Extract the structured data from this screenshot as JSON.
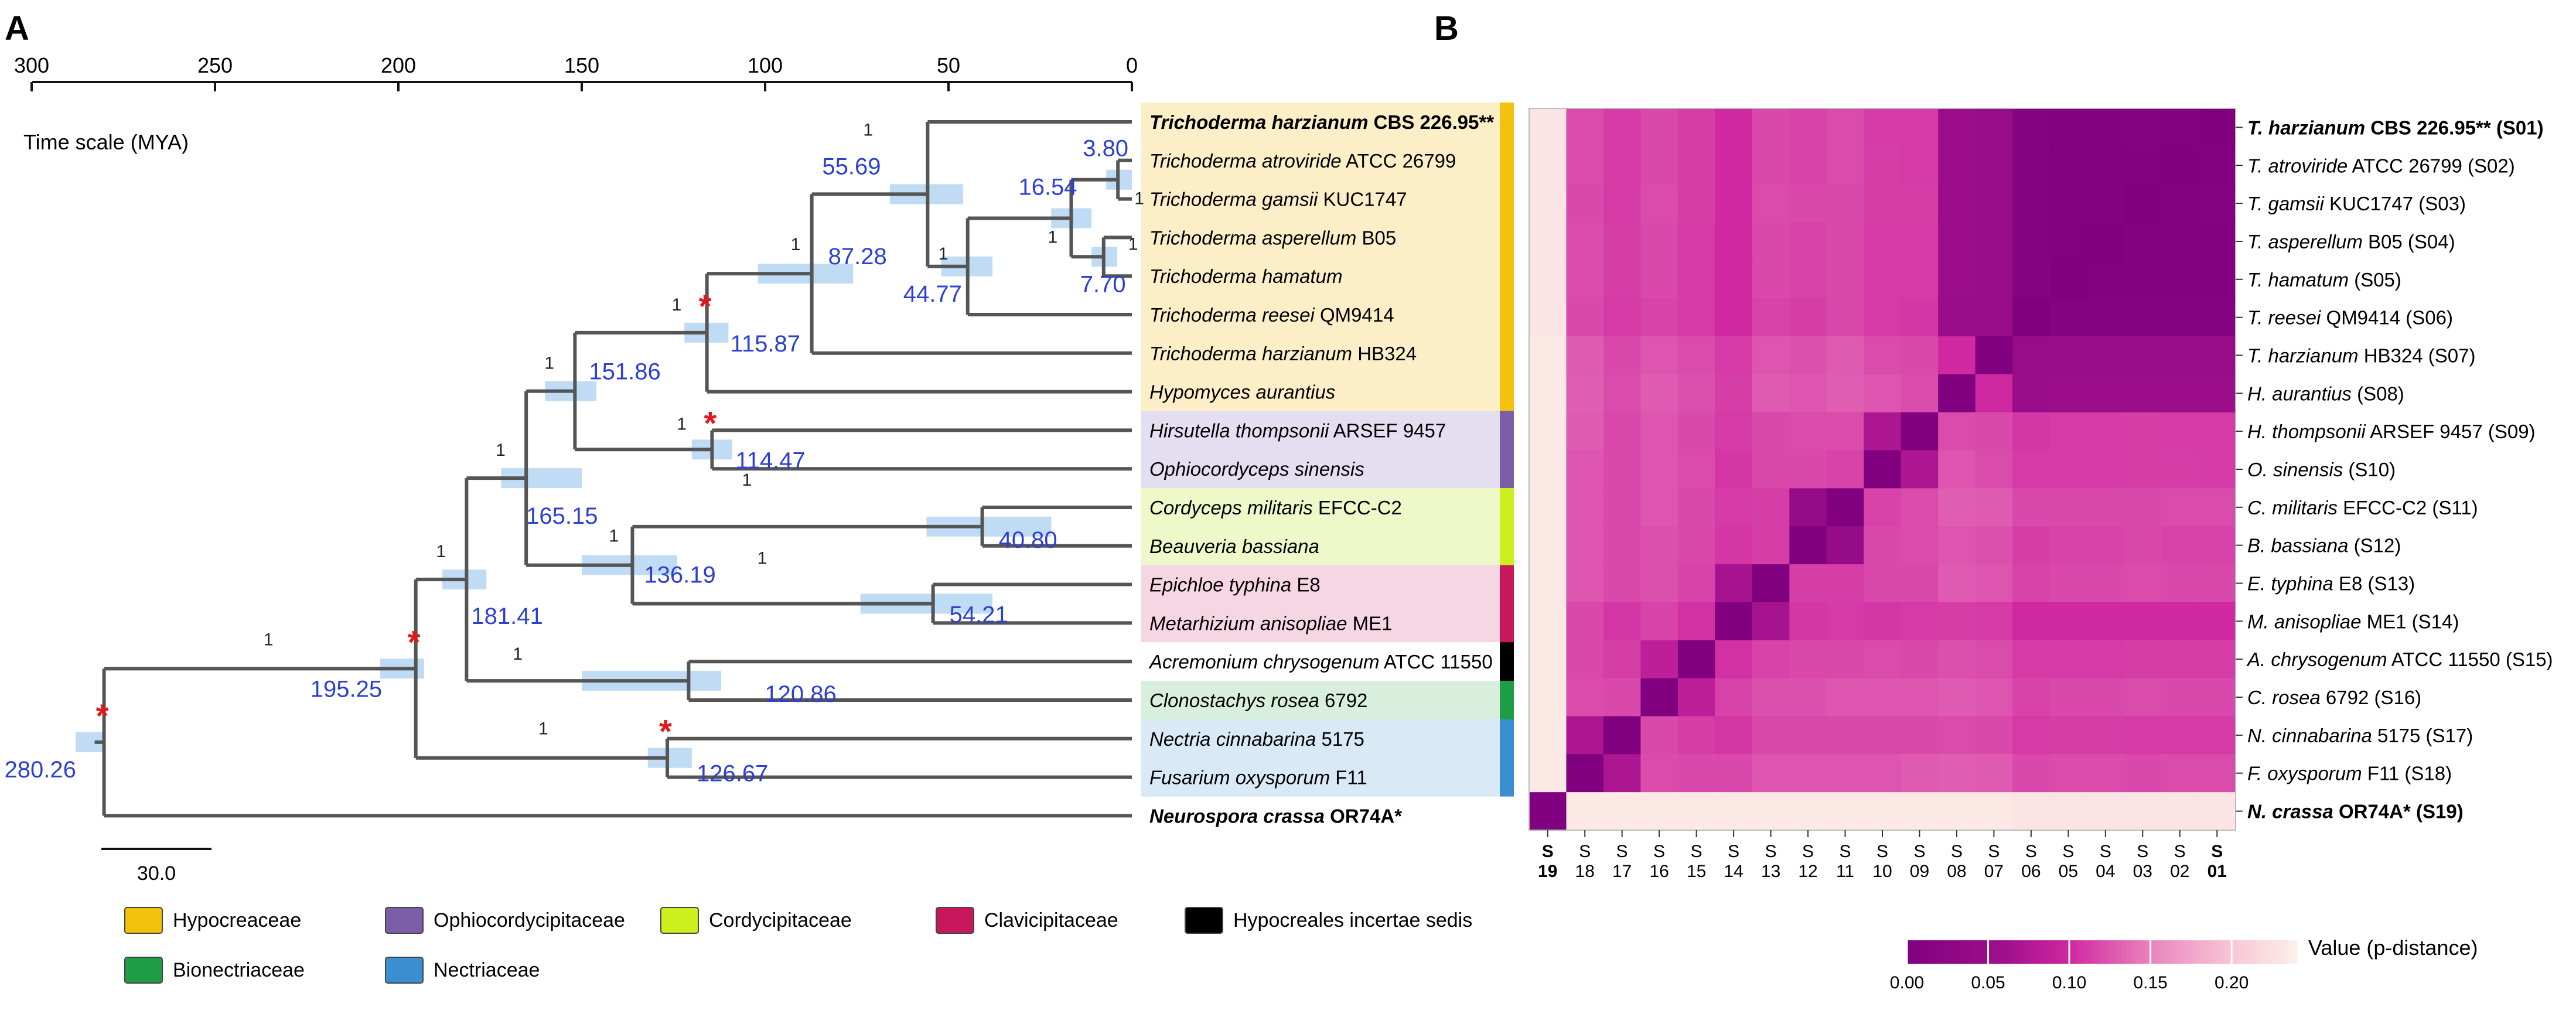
{
  "panels": {
    "a": "A",
    "b": "B"
  },
  "time_scale": {
    "label": "Time scale (MYA)",
    "ticks": [
      300,
      250,
      200,
      150,
      100,
      50,
      0
    ],
    "scale_bar": "30.0"
  },
  "families": [
    {
      "name": "Hypocreaceae",
      "color": "#f4c20d",
      "bg": "#fcefc7"
    },
    {
      "name": "Ophiocordycipitaceae",
      "color": "#7b5ea7",
      "bg": "#e3def0"
    },
    {
      "name": "Cordycipitaceae",
      "color": "#ccf01e",
      "bg": "#eef8c8"
    },
    {
      "name": "Clavicipitaceae",
      "color": "#c8185c",
      "bg": "#f7d6e4"
    },
    {
      "name": "Hypocreales incertae sedis",
      "color": "#000000",
      "bg": "#ffffff"
    },
    {
      "name": "Bionectriaceae",
      "color": "#1f9d45",
      "bg": "#d7efdc"
    },
    {
      "name": "Nectriaceae",
      "color": "#3b8fd0",
      "bg": "#d9e9f6"
    }
  ],
  "taxa": [
    {
      "genus": "Trichoderma harzianum",
      "rest": " CBS 226.95**",
      "bold": true,
      "family": 0
    },
    {
      "genus": "Trichoderma atroviride",
      "rest": " ATCC 26799",
      "bold": false,
      "family": 0
    },
    {
      "genus": "Trichoderma gamsii",
      "rest": " KUC1747",
      "bold": false,
      "family": 0
    },
    {
      "genus": "Trichoderma asperellum",
      "rest": " B05",
      "bold": false,
      "family": 0
    },
    {
      "genus": "Trichoderma hamatum",
      "rest": "",
      "bold": false,
      "family": 0
    },
    {
      "genus": "Trichoderma reesei",
      "rest": " QM9414",
      "bold": false,
      "family": 0
    },
    {
      "genus": "Trichoderma harzianum",
      "rest": " HB324",
      "bold": false,
      "family": 0
    },
    {
      "genus": "Hypomyces aurantius",
      "rest": "",
      "bold": false,
      "family": 0
    },
    {
      "genus": "Hirsutella thompsonii",
      "rest": " ARSEF 9457",
      "bold": false,
      "family": 1
    },
    {
      "genus": "Ophiocordyceps sinensis",
      "rest": "",
      "bold": false,
      "family": 1
    },
    {
      "genus": "Cordyceps militaris",
      "rest": " EFCC-C2",
      "bold": false,
      "family": 2
    },
    {
      "genus": "Beauveria bassiana",
      "rest": "",
      "bold": false,
      "family": 2
    },
    {
      "genus": "Epichloe typhina",
      "rest": " E8",
      "bold": false,
      "family": 3
    },
    {
      "genus": "Metarhizium anisopliae",
      "rest": " ME1",
      "bold": false,
      "family": 3
    },
    {
      "genus": "Acremonium chrysogenum",
      "rest": " ATCC 11550",
      "bold": false,
      "family": 4
    },
    {
      "genus": "Clonostachys rosea",
      "rest": " 6792",
      "bold": false,
      "family": 5
    },
    {
      "genus": "Nectria cinnabarina",
      "rest": " 5175",
      "bold": false,
      "family": 6
    },
    {
      "genus": "Fusarium oxysporum",
      "rest": " F11",
      "bold": false,
      "family": 6
    },
    {
      "genus": "Neurospora crassa",
      "rest": " OR74A*",
      "bold": true,
      "family": -1
    }
  ],
  "nodes": [
    {
      "id": "n_ae",
      "age": 3.8,
      "label": "3.80",
      "support": "1",
      "ci": [
        0,
        7
      ]
    },
    {
      "id": "n_dee",
      "age": 7.7,
      "label": "7.70",
      "support": "1",
      "ci": [
        4,
        11
      ]
    },
    {
      "id": "n_ae_de",
      "age": 16.54,
      "label": "16.54",
      "support": "1",
      "ci": [
        11,
        22
      ]
    },
    {
      "id": "n_rt",
      "age": 44.77,
      "label": "44.77",
      "support": "1",
      "ci": [
        38,
        52
      ]
    },
    {
      "id": "n_tc",
      "age": 55.69,
      "label": "55.69",
      "support": "1",
      "ci": [
        46,
        66
      ]
    },
    {
      "id": "n_tri",
      "age": 87.28,
      "label": "87.28",
      "support": "1",
      "ci": [
        76,
        102
      ]
    },
    {
      "id": "n_hyp",
      "age": 115.87,
      "label": "115.87",
      "support": "1",
      "ci": [
        110,
        122
      ],
      "calibrated": true
    },
    {
      "id": "n_oph",
      "age": 114.47,
      "label": "114.47",
      "support": "1",
      "ci": [
        109,
        120
      ],
      "calibrated": true
    },
    {
      "id": "n_hypoph",
      "age": 151.86,
      "label": "151.86",
      "support": "1",
      "ci": [
        146,
        160
      ]
    },
    {
      "id": "n_cord",
      "age": 40.8,
      "label": "40.80",
      "support": "1",
      "ci": [
        22,
        56
      ]
    },
    {
      "id": "n_clav",
      "age": 54.21,
      "label": "54.21",
      "support": "1",
      "ci": [
        38,
        74
      ]
    },
    {
      "id": "n_cc",
      "age": 136.19,
      "label": "136.19",
      "support": "1",
      "ci": [
        124,
        150
      ]
    },
    {
      "id": "n_5fam",
      "age": 165.15,
      "label": "165.15",
      "support": "1",
      "ci": [
        150,
        172
      ]
    },
    {
      "id": "n_6fam",
      "age": 181.41,
      "label": "181.41",
      "support": "1",
      "ci": [
        176,
        188
      ]
    },
    {
      "id": "n_bio",
      "age": 120.86,
      "label": "120.86",
      "support": "1",
      "ci": [
        112,
        150
      ]
    },
    {
      "id": "n_nec",
      "age": 126.67,
      "label": "126.67",
      "support": "1",
      "ci": [
        120,
        132
      ],
      "calibrated": true
    },
    {
      "id": "n_hypoc",
      "age": 195.25,
      "label": "195.25",
      "support": "1",
      "ci": [
        193,
        205
      ],
      "calibrated": true
    },
    {
      "id": "n_root",
      "age": 280.26,
      "label": "280.26",
      "support": "1",
      "ci": [
        280,
        288
      ],
      "calibrated": true
    }
  ],
  "chart_data": {
    "type": "heatmap",
    "title": "Value (p-distance)",
    "colorbar_ticks": [
      "0.00",
      "0.05",
      "0.10",
      "0.15",
      "0.20"
    ],
    "range": [
      0,
      0.24
    ],
    "row_labels": [
      {
        "sp": "T. harzianum",
        "rest": " CBS 226.95** (S01)",
        "bold": true
      },
      {
        "sp": "T. atroviride",
        "rest": " ATCC 26799 (S02)",
        "bold": false
      },
      {
        "sp": "T. gamsii",
        "rest": " KUC1747 (S03)",
        "bold": false
      },
      {
        "sp": "T. asperellum",
        "rest": " B05 (S04)",
        "bold": false
      },
      {
        "sp": "T. hamatum",
        "rest": " (S05)",
        "bold": false
      },
      {
        "sp": "T. reesei",
        "rest": " QM9414 (S06)",
        "bold": false
      },
      {
        "sp": "T. harzianum",
        "rest": " HB324 (S07)",
        "bold": false
      },
      {
        "sp": "H. aurantius",
        "rest": " (S08)",
        "bold": false
      },
      {
        "sp": "H. thompsonii",
        "rest": " ARSEF 9457 (S09)",
        "bold": false
      },
      {
        "sp": "O. sinensis",
        "rest": " (S10)",
        "bold": false
      },
      {
        "sp": "C. militaris",
        "rest": " EFCC-C2 (S11)",
        "bold": false
      },
      {
        "sp": "B. bassiana",
        "rest": " (S12)",
        "bold": false
      },
      {
        "sp": "E. typhina",
        "rest": " E8 (S13)",
        "bold": false
      },
      {
        "sp": "M. anisopliae",
        "rest": " ME1 (S14)",
        "bold": false
      },
      {
        "sp": "A. chrysogenum",
        "rest": " ATCC 11550 (S15)",
        "bold": false
      },
      {
        "sp": "C. rosea",
        "rest": " 6792 (S16)",
        "bold": false
      },
      {
        "sp": "N. cinnabarina",
        "rest": " 5175 (S17)",
        "bold": false
      },
      {
        "sp": "F. oxysporum",
        "rest": " F11 (S18)",
        "bold": false
      },
      {
        "sp": "N. crassa",
        "rest": " OR74A* (S19)",
        "bold": true
      }
    ],
    "col_labels": [
      "19",
      "18",
      "17",
      "16",
      "15",
      "14",
      "13",
      "12",
      "11",
      "10",
      "09",
      "08",
      "07",
      "06",
      "05",
      "04",
      "03",
      "02",
      "01"
    ],
    "col_prefix": "S",
    "matrix": [
      [
        0,
        0.008,
        0.01,
        0.008,
        0.008,
        0.009,
        0.045,
        0.05,
        0.11,
        0.11,
        0.12,
        0.115,
        0.118,
        0.1,
        0.112,
        0.118,
        0.11,
        0.12,
        0.23
      ],
      [
        0.008,
        0,
        0.006,
        0.004,
        0.004,
        0.009,
        0.045,
        0.05,
        0.11,
        0.112,
        0.12,
        0.115,
        0.118,
        0.1,
        0.112,
        0.118,
        0.11,
        0.12,
        0.23
      ],
      [
        0.01,
        0.006,
        0,
        0.006,
        0.006,
        0.01,
        0.046,
        0.05,
        0.112,
        0.112,
        0.118,
        0.118,
        0.12,
        0.1,
        0.112,
        0.12,
        0.11,
        0.118,
        0.23
      ],
      [
        0.008,
        0.004,
        0.006,
        0,
        0.002,
        0.01,
        0.046,
        0.05,
        0.11,
        0.11,
        0.118,
        0.115,
        0.118,
        0.1,
        0.11,
        0.118,
        0.112,
        0.12,
        0.23
      ],
      [
        0.008,
        0.004,
        0.006,
        0.002,
        0,
        0.01,
        0.046,
        0.05,
        0.11,
        0.11,
        0.118,
        0.115,
        0.118,
        0.1,
        0.11,
        0.118,
        0.112,
        0.12,
        0.23
      ],
      [
        0.009,
        0.009,
        0.01,
        0.01,
        0.01,
        0,
        0.045,
        0.048,
        0.108,
        0.11,
        0.118,
        0.112,
        0.115,
        0.1,
        0.11,
        0.115,
        0.11,
        0.118,
        0.23
      ],
      [
        0.045,
        0.045,
        0.046,
        0.046,
        0.046,
        0.045,
        0,
        0.1,
        0.118,
        0.12,
        0.128,
        0.122,
        0.125,
        0.11,
        0.12,
        0.125,
        0.118,
        0.128,
        0.235
      ],
      [
        0.05,
        0.05,
        0.05,
        0.05,
        0.05,
        0.048,
        0.1,
        0,
        0.12,
        0.125,
        0.13,
        0.125,
        0.128,
        0.112,
        0.122,
        0.128,
        0.12,
        0.13,
        0.235
      ],
      [
        0.11,
        0.11,
        0.112,
        0.11,
        0.11,
        0.108,
        0.118,
        0.12,
        0,
        0.07,
        0.12,
        0.12,
        0.118,
        0.11,
        0.118,
        0.125,
        0.118,
        0.128,
        0.235
      ],
      [
        0.11,
        0.112,
        0.112,
        0.11,
        0.11,
        0.11,
        0.12,
        0.125,
        0.07,
        0,
        0.115,
        0.118,
        0.118,
        0.108,
        0.12,
        0.125,
        0.118,
        0.125,
        0.235
      ],
      [
        0.12,
        0.12,
        0.118,
        0.118,
        0.118,
        0.118,
        0.128,
        0.13,
        0.12,
        0.115,
        0,
        0.04,
        0.112,
        0.11,
        0.118,
        0.125,
        0.118,
        0.125,
        0.235
      ],
      [
        0.115,
        0.115,
        0.118,
        0.115,
        0.115,
        0.112,
        0.122,
        0.125,
        0.12,
        0.118,
        0.04,
        0,
        0.112,
        0.108,
        0.118,
        0.122,
        0.118,
        0.125,
        0.235
      ],
      [
        0.118,
        0.118,
        0.12,
        0.118,
        0.118,
        0.115,
        0.125,
        0.128,
        0.118,
        0.118,
        0.112,
        0.112,
        0,
        0.065,
        0.115,
        0.122,
        0.118,
        0.125,
        0.235
      ],
      [
        0.1,
        0.1,
        0.1,
        0.1,
        0.1,
        0.1,
        0.11,
        0.112,
        0.11,
        0.108,
        0.11,
        0.108,
        0.065,
        0,
        0.105,
        0.115,
        0.108,
        0.118,
        0.235
      ],
      [
        0.112,
        0.112,
        0.112,
        0.11,
        0.11,
        0.11,
        0.12,
        0.122,
        0.118,
        0.12,
        0.118,
        0.118,
        0.115,
        0.105,
        0,
        0.085,
        0.112,
        0.118,
        0.235
      ],
      [
        0.118,
        0.118,
        0.12,
        0.118,
        0.118,
        0.115,
        0.125,
        0.128,
        0.125,
        0.125,
        0.125,
        0.122,
        0.122,
        0.115,
        0.085,
        0,
        0.118,
        0.12,
        0.235
      ],
      [
        0.11,
        0.11,
        0.11,
        0.112,
        0.112,
        0.11,
        0.118,
        0.12,
        0.118,
        0.118,
        0.118,
        0.118,
        0.118,
        0.108,
        0.112,
        0.118,
        0,
        0.07,
        0.235
      ],
      [
        0.12,
        0.12,
        0.118,
        0.12,
        0.12,
        0.118,
        0.128,
        0.13,
        0.128,
        0.125,
        0.125,
        0.125,
        0.125,
        0.118,
        0.118,
        0.12,
        0.07,
        0,
        0.235
      ],
      [
        0.23,
        0.23,
        0.23,
        0.23,
        0.23,
        0.23,
        0.235,
        0.235,
        0.235,
        0.235,
        0.235,
        0.235,
        0.235,
        0.235,
        0.235,
        0.235,
        0.235,
        0.235,
        0
      ]
    ]
  }
}
